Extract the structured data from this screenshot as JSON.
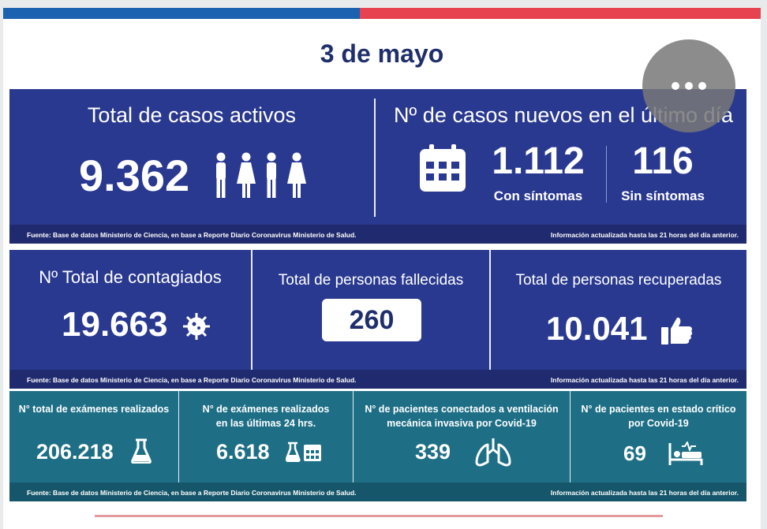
{
  "header": {
    "date": "3 de mayo"
  },
  "colors": {
    "navy": "#2a3990",
    "teal": "#1e6f86",
    "blue_bar": "#1b62b0",
    "red_bar": "#e6424f"
  },
  "overlay": {
    "icon": "more-dots-icon"
  },
  "row1": {
    "active_title": "Total de casos activos",
    "active_value": "9.362",
    "active_icon": "people-icon",
    "new_title": "Nº de casos nuevos en el último día",
    "new_icon": "calendar-icon",
    "with_symptoms_value": "1.112",
    "with_symptoms_label": "Con síntomas",
    "without_symptoms_value": "116",
    "without_symptoms_label": "Sin síntomas",
    "source": "Fuente: Base de datos Ministerio de Ciencia, en base a Reporte Diario Coronavirus Ministerio de Salud.",
    "updated": "Información actualizada hasta las 21 horas  del día anterior."
  },
  "row2": {
    "total_title": "Nº Total de contagiados",
    "total_value": "19.663",
    "total_icon": "virus-icon",
    "deaths_title": "Total de personas fallecidas",
    "deaths_value": "260",
    "recovered_title": "Total de personas recuperadas",
    "recovered_value": "10.041",
    "recovered_icon": "thumbs-up-icon",
    "source": "Fuente: Base de datos Ministerio de Ciencia, en base a Reporte Diario Coronavirus Ministerio de Salud.",
    "updated": "Información actualizada hasta las 21 horas  del día anterior."
  },
  "row3": {
    "exams_title": "N° total de exámenes realizados",
    "exams_value": "206.218",
    "exams_icon": "flask-icon",
    "exams24_title_1": "N° de exámenes realizados",
    "exams24_title_2": "en las últimas 24 hrs.",
    "exams24_value": "6.618",
    "exams24_icon": "flask-calendar-icon",
    "vent_title_1": "N° de pacientes conectados a ventilación",
    "vent_title_2": "mecánica invasiva por Covid-19",
    "vent_value": "339",
    "vent_icon": "lungs-icon",
    "critical_title_1": "N° de pacientes en estado crítico",
    "critical_title_2": "por Covid-19",
    "critical_value": "69",
    "critical_icon": "hospital-bed-icon",
    "source": "Fuente: Base de datos Ministerio de Ciencia, en base a Reporte Diario Coronavirus Ministerio de Salud.",
    "updated": "Información actualizada hasta las 21 horas  del día anterior."
  }
}
